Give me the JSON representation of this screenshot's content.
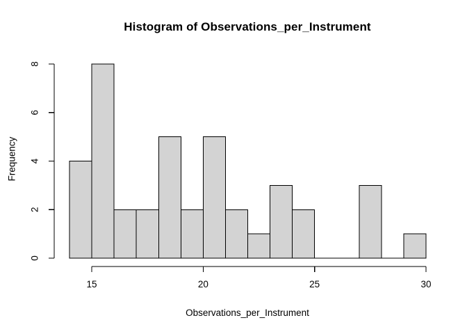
{
  "figure": {
    "background": "#ffffff",
    "text_color": "#000000"
  },
  "chart_data": {
    "type": "bar",
    "chart_kind": "histogram",
    "title": "Histogram of Observations_per_Instrument",
    "xlabel": "Observations_per_Instrument",
    "ylabel": "Frequency",
    "breaks": [
      14,
      15,
      16,
      17,
      18,
      19,
      20,
      21,
      22,
      23,
      24,
      25,
      26,
      27,
      28,
      29,
      30
    ],
    "counts": [
      4,
      8,
      2,
      2,
      5,
      2,
      5,
      2,
      1,
      3,
      2,
      0,
      0,
      3,
      0,
      1
    ],
    "xticks": [
      15,
      20,
      25,
      30
    ],
    "yticks": [
      0,
      2,
      4,
      6,
      8
    ],
    "xlim": [
      14,
      30
    ],
    "ylim": [
      0,
      8
    ],
    "bar_fill": "#d3d3d3",
    "bar_stroke": "#000000",
    "axis_color": "#000000",
    "grid": false,
    "legend": false
  }
}
